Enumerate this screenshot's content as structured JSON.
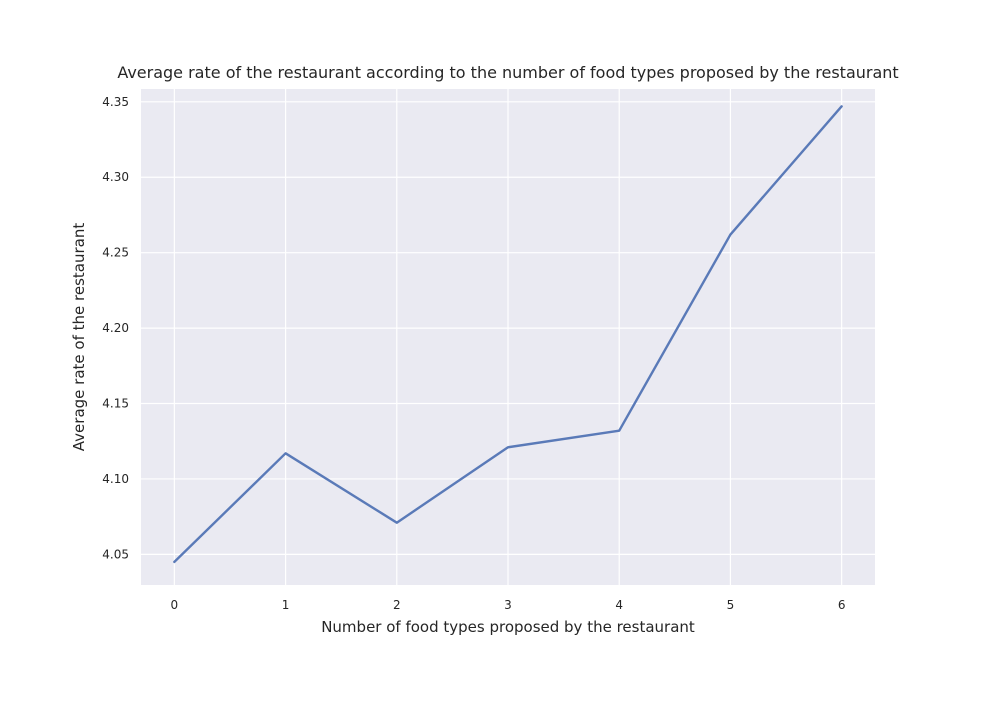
{
  "chart_data": {
    "type": "line",
    "title": "Average rate of the restaurant according to the number of food types proposed by the restaurant",
    "xlabel": "Number of food types proposed by the restaurant",
    "ylabel": "Average rate of the restaurant",
    "x": [
      0,
      1,
      2,
      3,
      4,
      5,
      6
    ],
    "series": [
      {
        "values": [
          4.045,
          4.117,
          4.071,
          4.121,
          4.132,
          4.262,
          4.347
        ]
      }
    ],
    "xticks": [
      "0",
      "1",
      "2",
      "3",
      "4",
      "5",
      "6"
    ],
    "yticks": [
      "4.05",
      "4.10",
      "4.15",
      "4.20",
      "4.25",
      "4.30",
      "4.35"
    ],
    "xlim": [
      -0.3,
      6.3
    ],
    "ylim": [
      4.0297,
      4.3585
    ],
    "grid": true,
    "legend": "none",
    "colors": {
      "background": "#eaeaf2",
      "grid": "#ffffff",
      "line": "#5a7ab8"
    }
  }
}
